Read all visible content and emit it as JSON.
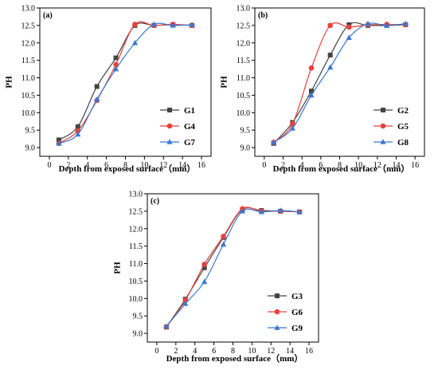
{
  "chart_data": [
    {
      "type": "line",
      "panel_label": "(a)",
      "xlabel": "Depth from exposed surface（mm）",
      "ylabel": "PH",
      "xlim": [
        -1,
        17
      ],
      "ylim": [
        8.75,
        13.0
      ],
      "xticks": [
        0,
        2,
        4,
        6,
        8,
        10,
        12,
        14,
        16
      ],
      "yticks": [
        9.0,
        9.5,
        10.0,
        10.5,
        11.0,
        11.5,
        12.0,
        12.5,
        13.0
      ],
      "legend_position": "bottom-right",
      "x": [
        1,
        3,
        5,
        7,
        9,
        11,
        13,
        15
      ],
      "series": [
        {
          "name": "G1",
          "color": "#444444",
          "marker": "square",
          "values": [
            9.22,
            9.6,
            10.75,
            11.57,
            12.5,
            12.5,
            12.52,
            12.5
          ]
        },
        {
          "name": "G4",
          "color": "#e8413c",
          "marker": "circle",
          "values": [
            9.12,
            9.48,
            10.35,
            11.38,
            12.53,
            12.5,
            12.53,
            12.5
          ]
        },
        {
          "name": "G7",
          "color": "#3a78d0",
          "marker": "triangle",
          "values": [
            9.12,
            9.38,
            10.38,
            11.25,
            12.0,
            12.53,
            12.5,
            12.52
          ]
        }
      ]
    },
    {
      "type": "line",
      "panel_label": "(b)",
      "xlabel": "Depth from exposed surface（mm）",
      "ylabel": "PH",
      "xlim": [
        -1,
        17
      ],
      "ylim": [
        8.75,
        13.0
      ],
      "xticks": [
        0,
        2,
        4,
        6,
        8,
        10,
        12,
        14,
        16
      ],
      "yticks": [
        9.0,
        9.5,
        10.0,
        10.5,
        11.0,
        11.5,
        12.0,
        12.5,
        13.0
      ],
      "legend_position": "bottom-right",
      "x": [
        1,
        3,
        5,
        7,
        9,
        11,
        13,
        15
      ],
      "series": [
        {
          "name": "G2",
          "color": "#444444",
          "marker": "square",
          "values": [
            9.12,
            9.72,
            10.62,
            11.65,
            12.52,
            12.5,
            12.5,
            12.52
          ]
        },
        {
          "name": "G5",
          "color": "#e8413c",
          "marker": "circle",
          "values": [
            9.15,
            9.68,
            11.28,
            12.5,
            12.45,
            12.52,
            12.53,
            12.52
          ]
        },
        {
          "name": "G8",
          "color": "#3a78d0",
          "marker": "triangle",
          "values": [
            9.15,
            9.55,
            10.5,
            11.3,
            12.15,
            12.55,
            12.5,
            12.55
          ]
        }
      ]
    },
    {
      "type": "line",
      "panel_label": "(c)",
      "xlabel": "Depth from exposed surface（mm）",
      "ylabel": "PH",
      "xlim": [
        -1,
        17
      ],
      "ylim": [
        8.75,
        13.0
      ],
      "xticks": [
        0,
        2,
        4,
        6,
        8,
        10,
        12,
        14,
        16
      ],
      "yticks": [
        9.0,
        9.5,
        10.0,
        10.5,
        11.0,
        11.5,
        12.0,
        12.5,
        13.0
      ],
      "legend_position": "bottom-right",
      "x": [
        1,
        3,
        5,
        7,
        9,
        11,
        13,
        15
      ],
      "series": [
        {
          "name": "G3",
          "color": "#444444",
          "marker": "square",
          "values": [
            9.18,
            9.98,
            10.88,
            11.75,
            12.55,
            12.52,
            12.5,
            12.48
          ]
        },
        {
          "name": "G6",
          "color": "#e8413c",
          "marker": "circle",
          "values": [
            9.18,
            9.95,
            10.98,
            11.78,
            12.57,
            12.5,
            12.5,
            12.48
          ]
        },
        {
          "name": "G9",
          "color": "#3a78d0",
          "marker": "triangle",
          "values": [
            9.2,
            9.85,
            10.48,
            11.55,
            12.5,
            12.48,
            12.52,
            12.48
          ]
        }
      ]
    }
  ]
}
